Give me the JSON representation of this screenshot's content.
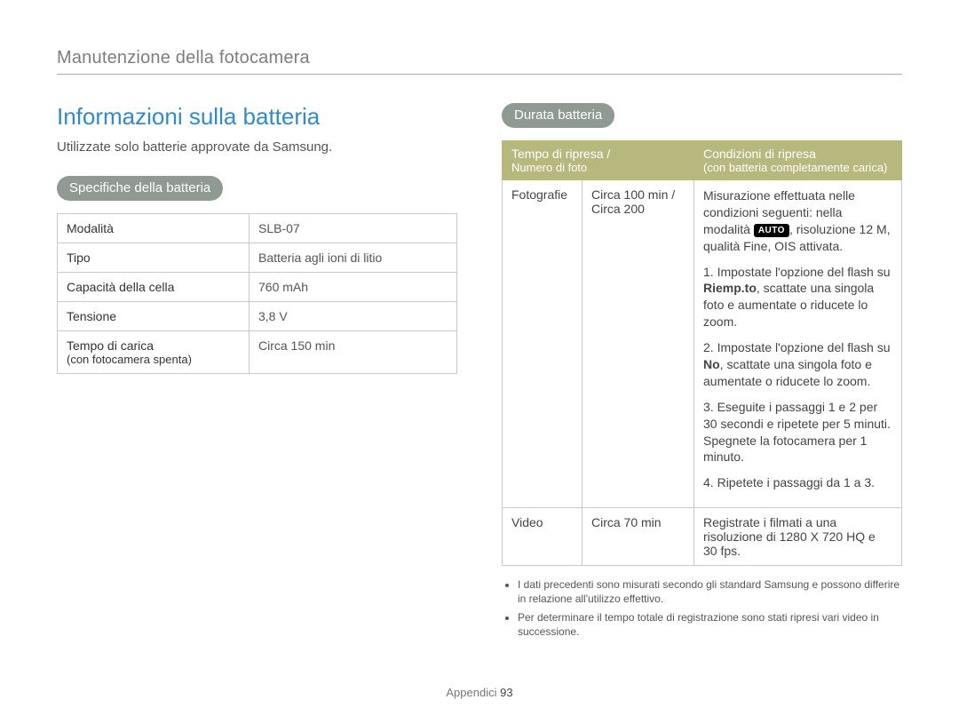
{
  "breadcrumb": "Manutenzione della fotocamera",
  "title": "Informazioni sulla batteria",
  "intro": "Utilizzate solo batterie approvate da Samsung.",
  "spec_heading": "Specifiche della batteria",
  "spec_rows": [
    {
      "k": "Modalità",
      "v": "SLB-07"
    },
    {
      "k": "Tipo",
      "v": "Batteria agli ioni di litio"
    },
    {
      "k": "Capacità della cella",
      "v": "760 mAh"
    },
    {
      "k": "Tensione",
      "v": "3,8 V"
    },
    {
      "k": "Tempo di carica",
      "ksub": "(con fotocamera spenta)",
      "v": "Circa 150 min"
    }
  ],
  "life_heading": "Durata batteria",
  "life_header": {
    "c1a": "Tempo di ripresa /",
    "c1b": "Numero di foto",
    "c2a": "Condizioni di ripresa",
    "c2b": "(con batteria completamente carica)"
  },
  "life_photo": {
    "label": "Fotografie",
    "value_a": "Circa 100 min /",
    "value_b": "Circa 200",
    "cond_intro_a": "Misurazione effettuata nelle condizioni seguenti: nella modalità ",
    "cond_intro_badge": "AUTO",
    "cond_intro_b": ", risoluzione 12 M, qualità Fine, OIS attivata.",
    "steps": [
      {
        "n": "1.",
        "pre": "Impostate l'opzione del flash su ",
        "bold": "Riemp.to",
        "post": ", scattate una singola foto e aumentate o riducete lo zoom."
      },
      {
        "n": "2.",
        "pre": "Impostate l'opzione del flash su ",
        "bold": "No",
        "post": ", scattate una singola foto e aumentate o riducete lo zoom."
      },
      {
        "n": "3.",
        "pre": "",
        "bold": "",
        "post": "Eseguite i passaggi 1 e 2 per 30 secondi e ripetete per 5 minuti. Spegnete la fotocamera per 1 minuto."
      },
      {
        "n": "4.",
        "pre": "",
        "bold": "",
        "post": "Ripetete i passaggi da 1 a 3."
      }
    ]
  },
  "life_video": {
    "label": "Video",
    "value": "Circa 70 min",
    "cond": "Registrate i filmati a una risoluzione di 1280 X 720 HQ e 30 fps."
  },
  "notes": [
    "I dati precedenti sono misurati secondo gli standard Samsung e possono differire in relazione all'utilizzo effettivo.",
    "Per determinare il tempo totale di registrazione sono stati ripresi vari video in successione."
  ],
  "footer_label": "Appendici",
  "footer_page": "93",
  "colors": {
    "rule": "#d9a65a",
    "pill_bg": "#8f9a93",
    "th_bg": "#b7b87e",
    "title": "#2f8bc9",
    "border": "#c9c9c9"
  }
}
